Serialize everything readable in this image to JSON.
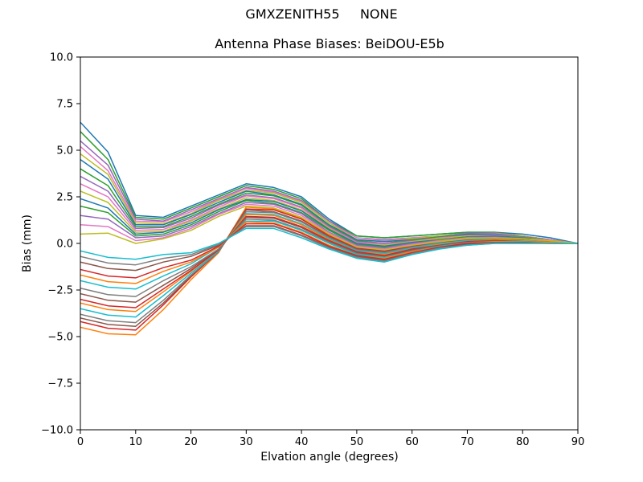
{
  "figure": {
    "background": "#ffffff",
    "axes_edge_color": "#000000"
  },
  "chart_data": {
    "type": "line",
    "suptitle": "GMXZENITH55     NONE",
    "title": "Antenna Phase Biases: BeiDOU-E5b",
    "xlabel": "Elvation angle (degrees)",
    "ylabel": "Bias (mm)",
    "xlim": [
      0,
      90
    ],
    "ylim": [
      -10,
      10
    ],
    "grid": false,
    "legend": "none",
    "xticks": {
      "values": [
        0,
        10,
        20,
        30,
        40,
        50,
        60,
        70,
        80,
        90
      ],
      "labels": [
        "0",
        "10",
        "20",
        "30",
        "40",
        "50",
        "60",
        "70",
        "80",
        "90"
      ]
    },
    "yticks": {
      "values": [
        10,
        7.5,
        5,
        2.5,
        0,
        -2.5,
        -5,
        -7.5,
        -10
      ],
      "labels": [
        "10.0",
        "7.5",
        "5.0",
        "2.5",
        "0.0",
        "−2.5",
        "−5.0",
        "−7.5",
        "−10.0"
      ]
    },
    "palette": [
      "#1f77b4",
      "#ff7f0e",
      "#2ca02c",
      "#d62728",
      "#9467bd",
      "#8c564b",
      "#e377c2",
      "#7f7f7f",
      "#bcbd22",
      "#17becf"
    ],
    "x": [
      0,
      5,
      10,
      15,
      20,
      25,
      30,
      35,
      40,
      45,
      50,
      55,
      60,
      65,
      70,
      75,
      80,
      85,
      90
    ],
    "series": [
      {
        "values": [
          6.5,
          4.9,
          1.5,
          1.4,
          2.0,
          2.6,
          3.2,
          3.0,
          2.5,
          1.3,
          0.4,
          0.3,
          0.4,
          0.5,
          0.6,
          0.6,
          0.5,
          0.3,
          0.0
        ]
      },
      {
        "values": [
          -4.5,
          -4.85,
          -4.9,
          -3.55,
          -1.95,
          -0.5,
          1.95,
          1.85,
          1.35,
          0.45,
          -0.2,
          -0.4,
          -0.1,
          0.1,
          0.25,
          0.3,
          0.2,
          0.1,
          0.0
        ]
      },
      {
        "values": [
          6.0,
          4.5,
          1.4,
          1.3,
          1.9,
          2.5,
          3.1,
          2.9,
          2.4,
          1.2,
          0.4,
          0.3,
          0.4,
          0.5,
          0.6,
          0.6,
          0.4,
          0.2,
          0.0
        ]
      },
      {
        "values": [
          -4.2,
          -4.55,
          -4.65,
          -3.3,
          -1.8,
          -0.45,
          1.85,
          1.8,
          1.3,
          0.4,
          -0.25,
          -0.4,
          -0.15,
          0.05,
          0.2,
          0.25,
          0.2,
          0.1,
          0.0
        ]
      },
      {
        "values": [
          5.5,
          4.2,
          1.3,
          1.2,
          1.8,
          2.4,
          3.0,
          2.8,
          2.3,
          1.2,
          0.3,
          0.2,
          0.3,
          0.4,
          0.55,
          0.55,
          0.4,
          0.2,
          0.0
        ]
      },
      {
        "values": [
          -4.0,
          -4.35,
          -4.45,
          -3.2,
          -1.75,
          -0.45,
          1.8,
          1.7,
          1.2,
          0.35,
          -0.3,
          -0.45,
          -0.2,
          0.05,
          0.2,
          0.25,
          0.2,
          0.1,
          0.0
        ]
      },
      {
        "values": [
          5.2,
          3.9,
          1.2,
          1.15,
          1.7,
          2.35,
          2.95,
          2.75,
          2.25,
          1.1,
          0.3,
          0.15,
          0.3,
          0.4,
          0.5,
          0.55,
          0.4,
          0.2,
          0.0
        ]
      },
      {
        "values": [
          -3.8,
          -4.15,
          -4.25,
          -3.05,
          -1.7,
          -0.45,
          1.7,
          1.65,
          1.15,
          0.3,
          -0.35,
          -0.5,
          -0.2,
          0.0,
          0.15,
          0.25,
          0.15,
          0.1,
          0.0
        ]
      },
      {
        "values": [
          4.8,
          3.7,
          1.1,
          1.05,
          1.6,
          2.3,
          2.85,
          2.7,
          2.2,
          1.1,
          0.2,
          0.1,
          0.25,
          0.4,
          0.5,
          0.5,
          0.4,
          0.2,
          0.0
        ]
      },
      {
        "values": [
          -3.5,
          -3.85,
          -3.95,
          -2.8,
          -1.6,
          -0.4,
          1.6,
          1.55,
          1.05,
          0.25,
          -0.4,
          -0.55,
          -0.25,
          0.0,
          0.15,
          0.2,
          0.15,
          0.1,
          0.0
        ]
      },
      {
        "values": [
          4.5,
          3.45,
          1.0,
          1.0,
          1.55,
          2.2,
          2.8,
          2.6,
          2.1,
          1.0,
          0.2,
          0.1,
          0.2,
          0.35,
          0.5,
          0.5,
          0.35,
          0.2,
          0.0
        ]
      },
      {
        "values": [
          -3.2,
          -3.55,
          -3.65,
          -2.6,
          -1.5,
          -0.35,
          1.55,
          1.5,
          1.0,
          0.2,
          -0.45,
          -0.6,
          -0.3,
          -0.05,
          0.1,
          0.2,
          0.15,
          0.1,
          0.0
        ]
      },
      {
        "values": [
          4.0,
          3.1,
          0.9,
          0.9,
          1.45,
          2.1,
          2.7,
          2.55,
          2.05,
          0.95,
          0.15,
          0.0,
          0.2,
          0.35,
          0.45,
          0.45,
          0.35,
          0.2,
          0.0
        ]
      },
      {
        "values": [
          -3.0,
          -3.35,
          -3.45,
          -2.45,
          -1.45,
          -0.35,
          1.45,
          1.4,
          0.9,
          0.15,
          -0.45,
          -0.65,
          -0.3,
          -0.1,
          0.1,
          0.15,
          0.1,
          0.05,
          0.0
        ]
      },
      {
        "values": [
          3.6,
          2.8,
          0.8,
          0.85,
          1.35,
          2.05,
          2.6,
          2.45,
          1.95,
          0.9,
          0.1,
          0.0,
          0.15,
          0.3,
          0.45,
          0.45,
          0.35,
          0.2,
          0.0
        ]
      },
      {
        "values": [
          -2.7,
          -3.05,
          -3.15,
          -2.25,
          -1.35,
          -0.3,
          1.4,
          1.35,
          0.85,
          0.1,
          -0.5,
          -0.7,
          -0.35,
          -0.1,
          0.05,
          0.15,
          0.1,
          0.05,
          0.0
        ]
      },
      {
        "values": [
          3.2,
          2.5,
          0.7,
          0.75,
          1.25,
          1.95,
          2.55,
          2.4,
          1.9,
          0.85,
          0.05,
          -0.05,
          0.1,
          0.3,
          0.4,
          0.45,
          0.3,
          0.2,
          0.0
        ]
      },
      {
        "values": [
          -2.4,
          -2.75,
          -2.85,
          -2.0,
          -1.25,
          -0.3,
          1.3,
          1.25,
          0.75,
          0.05,
          -0.55,
          -0.75,
          -0.4,
          -0.15,
          0.05,
          0.1,
          0.1,
          0.05,
          0.0
        ]
      },
      {
        "values": [
          2.8,
          2.2,
          0.6,
          0.65,
          1.2,
          1.85,
          2.45,
          2.3,
          1.8,
          0.8,
          0.0,
          -0.1,
          0.1,
          0.25,
          0.4,
          0.4,
          0.3,
          0.15,
          0.0
        ]
      },
      {
        "values": [
          -2.0,
          -2.35,
          -2.45,
          -1.75,
          -1.1,
          -0.2,
          1.2,
          1.2,
          0.7,
          0.0,
          -0.6,
          -0.75,
          -0.45,
          -0.15,
          0.0,
          0.1,
          0.1,
          0.05,
          0.0
        ]
      },
      {
        "values": [
          2.4,
          1.9,
          0.5,
          0.6,
          1.1,
          1.8,
          2.35,
          2.25,
          1.75,
          0.75,
          0.0,
          -0.15,
          0.05,
          0.2,
          0.35,
          0.4,
          0.3,
          0.15,
          0.0
        ]
      },
      {
        "values": [
          -1.7,
          -2.05,
          -2.15,
          -1.5,
          -1.0,
          -0.2,
          1.15,
          1.1,
          0.6,
          -0.1,
          -0.65,
          -0.8,
          -0.45,
          -0.2,
          0.0,
          0.1,
          0.05,
          0.05,
          0.0
        ]
      },
      {
        "values": [
          2.0,
          1.65,
          0.4,
          0.5,
          1.0,
          1.7,
          2.3,
          2.15,
          1.65,
          0.7,
          -0.05,
          -0.2,
          0.0,
          0.2,
          0.35,
          0.35,
          0.3,
          0.15,
          0.0
        ]
      },
      {
        "values": [
          -1.4,
          -1.75,
          -1.85,
          -1.3,
          -0.9,
          -0.15,
          1.05,
          1.05,
          0.55,
          -0.15,
          -0.65,
          -0.85,
          -0.5,
          -0.2,
          0.0,
          0.05,
          0.05,
          0.0,
          0.0
        ]
      },
      {
        "values": [
          1.5,
          1.3,
          0.3,
          0.4,
          0.9,
          1.6,
          2.2,
          2.1,
          1.6,
          0.6,
          -0.1,
          -0.25,
          0.0,
          0.15,
          0.3,
          0.35,
          0.25,
          0.15,
          0.0
        ]
      },
      {
        "values": [
          -1.0,
          -1.35,
          -1.45,
          -1.0,
          -0.7,
          -0.1,
          0.95,
          0.95,
          0.45,
          -0.2,
          -0.7,
          -0.9,
          -0.55,
          -0.25,
          -0.05,
          0.05,
          0.05,
          0.0,
          0.0
        ]
      },
      {
        "values": [
          1.0,
          0.9,
          0.15,
          0.3,
          0.8,
          1.55,
          2.1,
          2.0,
          1.5,
          0.55,
          -0.15,
          -0.3,
          -0.05,
          0.15,
          0.3,
          0.3,
          0.25,
          0.15,
          0.0
        ]
      },
      {
        "values": [
          -0.7,
          -1.05,
          -1.15,
          -0.8,
          -0.6,
          -0.05,
          0.9,
          0.9,
          0.4,
          -0.25,
          -0.75,
          -0.95,
          -0.55,
          -0.25,
          -0.1,
          0.0,
          0.0,
          0.0,
          0.0
        ]
      },
      {
        "values": [
          0.5,
          0.55,
          0.0,
          0.25,
          0.7,
          1.45,
          2.0,
          1.9,
          1.4,
          0.5,
          -0.2,
          -0.35,
          -0.1,
          0.1,
          0.25,
          0.3,
          0.25,
          0.15,
          0.0
        ]
      },
      {
        "values": [
          -0.4,
          -0.75,
          -0.85,
          -0.6,
          -0.5,
          0.0,
          0.8,
          0.8,
          0.3,
          -0.3,
          -0.8,
          -1.0,
          -0.6,
          -0.3,
          -0.1,
          0.0,
          0.0,
          0.0,
          0.0
        ]
      }
    ]
  }
}
